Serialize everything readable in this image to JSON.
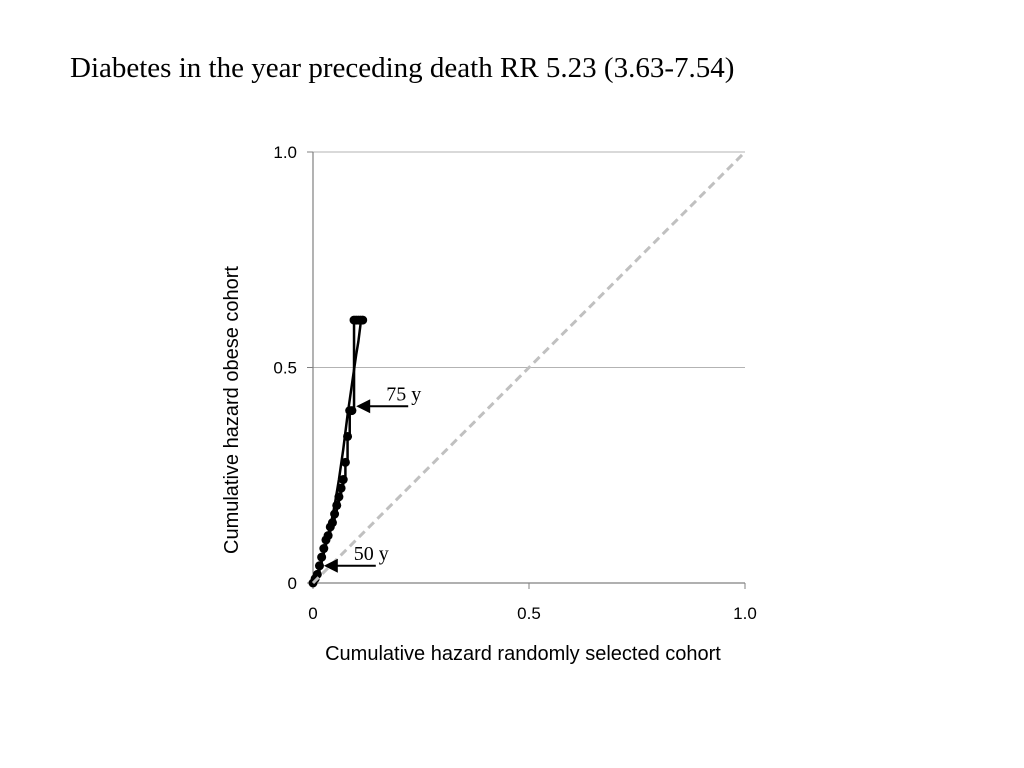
{
  "title": "Diabetes in the year preceding death RR 5.23 (3.63-7.54)",
  "chart_data": {
    "type": "line",
    "title": "Diabetes in the year preceding death RR 5.23 (3.63-7.54)",
    "xlabel": "Cumulative hazard randomly selected cohort",
    "ylabel": "Cumulative hazard obese cohort",
    "xlim": [
      0,
      1.0
    ],
    "ylim": [
      0,
      1.0
    ],
    "x_ticks": [
      {
        "value": 0,
        "label": "0"
      },
      {
        "value": 0.5,
        "label": "0.5"
      },
      {
        "value": 1.0,
        "label": "1.0"
      }
    ],
    "y_ticks": [
      {
        "value": 0,
        "label": "0"
      },
      {
        "value": 0.5,
        "label": "0.5"
      },
      {
        "value": 1.0,
        "label": "1.0"
      }
    ],
    "grid": "horizontal",
    "series": [
      {
        "style": "step-with-markers",
        "color": "#000000",
        "x": [
          0.0,
          0.005,
          0.01,
          0.015,
          0.02,
          0.025,
          0.03,
          0.035,
          0.04,
          0.045,
          0.05,
          0.055,
          0.06,
          0.065,
          0.07,
          0.075,
          0.08,
          0.085,
          0.09,
          0.095,
          0.1,
          0.105,
          0.11,
          0.115
        ],
        "y": [
          0.0,
          0.01,
          0.02,
          0.04,
          0.06,
          0.08,
          0.1,
          0.11,
          0.13,
          0.14,
          0.16,
          0.18,
          0.2,
          0.22,
          0.24,
          0.28,
          0.34,
          0.4,
          0.4,
          0.61,
          0.61,
          0.61,
          0.61,
          0.61
        ]
      },
      {
        "style": "smooth",
        "color": "#000000",
        "x": [
          0.0,
          0.01,
          0.02,
          0.03,
          0.04,
          0.05,
          0.06,
          0.07,
          0.08,
          0.09,
          0.1,
          0.105,
          0.11
        ],
        "y": [
          0.0,
          0.02,
          0.05,
          0.09,
          0.13,
          0.18,
          0.24,
          0.31,
          0.39,
          0.46,
          0.53,
          0.56,
          0.6
        ]
      },
      {
        "style": "dashed",
        "color": "#c0c0c0",
        "x": [
          0.0,
          1.0
        ],
        "y": [
          0.0,
          1.0
        ]
      }
    ],
    "annotations": [
      {
        "text": "75 y",
        "x": 0.1,
        "y": 0.41
      },
      {
        "text": "50 y",
        "x": 0.025,
        "y": 0.04
      }
    ]
  }
}
